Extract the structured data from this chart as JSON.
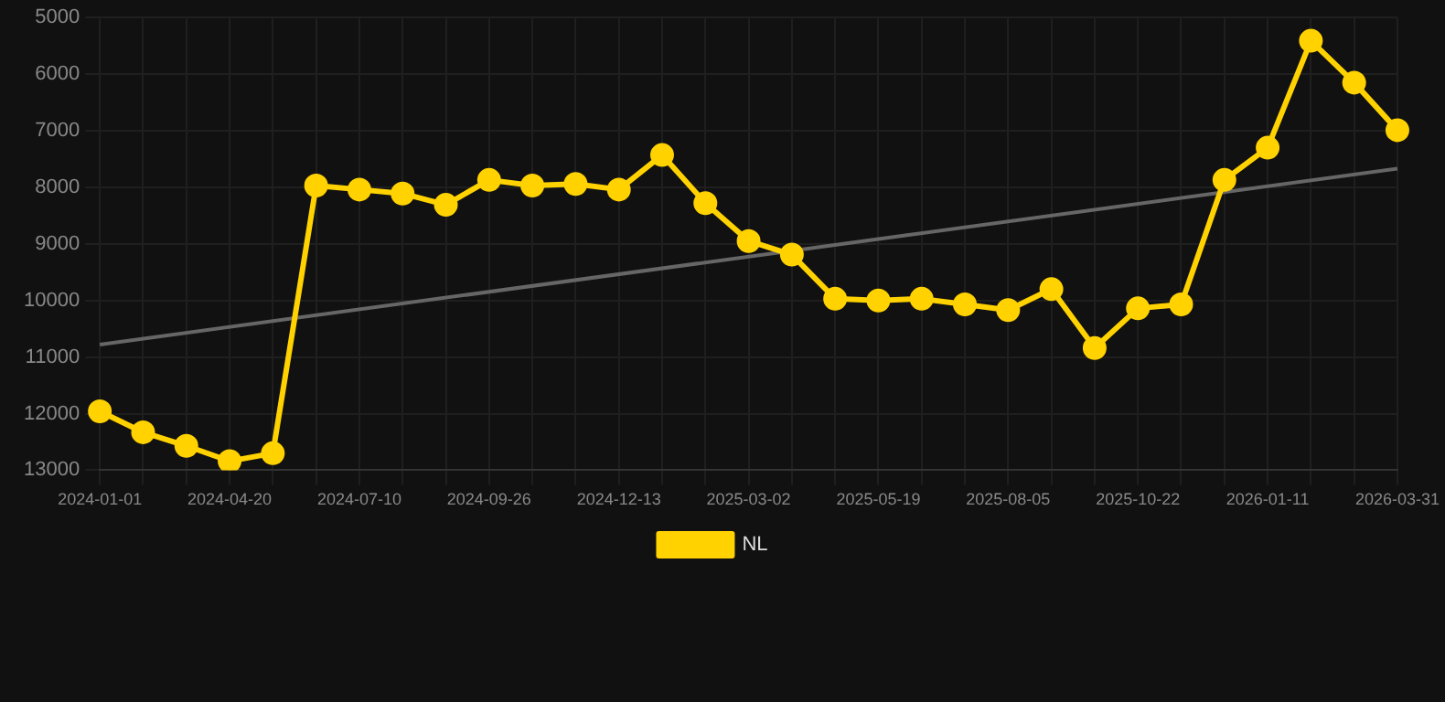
{
  "chart_data": {
    "type": "line",
    "categories": [
      "2024-01-01",
      null,
      null,
      "2024-04-20",
      null,
      null,
      "2024-07-10",
      null,
      null,
      "2024-09-26",
      null,
      null,
      "2024-12-13",
      null,
      null,
      "2025-03-02",
      null,
      null,
      "2025-05-19",
      null,
      null,
      "2025-08-05",
      null,
      null,
      "2025-10-22",
      null,
      null,
      "2026-01-11",
      null,
      null,
      "2026-03-31"
    ],
    "series": [
      {
        "name": "NL",
        "color": "#ffd200",
        "marker": "circle",
        "values": [
          11960,
          12330,
          12570,
          12840,
          12700,
          7970,
          8040,
          8110,
          8310,
          7870,
          7970,
          7940,
          8040,
          7430,
          8280,
          8950,
          9190,
          9970,
          10000,
          9970,
          10070,
          10170,
          9800,
          10840,
          10140,
          10070,
          7870,
          7300,
          5410,
          6150,
          6990
        ]
      },
      {
        "type": "line",
        "color": "#666666",
        "marker": "none",
        "values": [
          10780,
          null,
          null,
          null,
          null,
          null,
          null,
          null,
          null,
          null,
          null,
          null,
          null,
          null,
          null,
          null,
          null,
          null,
          null,
          null,
          null,
          null,
          null,
          null,
          null,
          null,
          null,
          null,
          null,
          null,
          7670
        ]
      }
    ],
    "ylim": [
      13000,
      5000
    ],
    "yticks": [
      5000,
      6000,
      7000,
      8000,
      9000,
      10000,
      11000,
      12000,
      13000
    ],
    "grid": true,
    "legend": "bottom"
  }
}
